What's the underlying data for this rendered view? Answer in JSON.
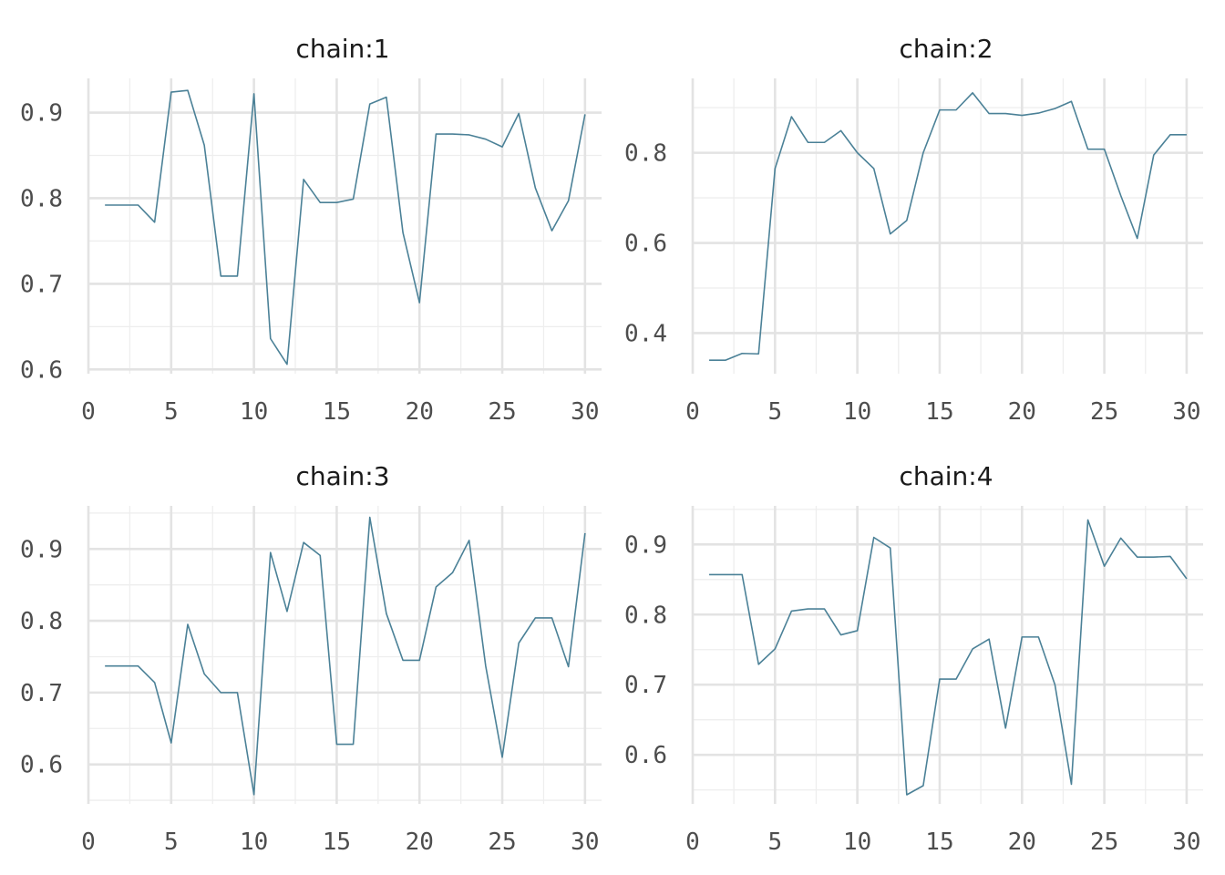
{
  "chart_data": [
    {
      "type": "line",
      "title": "chain:1",
      "x": [
        1,
        2,
        3,
        4,
        5,
        6,
        7,
        8,
        9,
        10,
        11,
        12,
        13,
        14,
        15,
        16,
        17,
        18,
        19,
        20,
        21,
        22,
        23,
        24,
        25,
        26,
        27,
        28,
        29,
        30
      ],
      "values": [
        0.792,
        0.792,
        0.792,
        0.772,
        0.924,
        0.926,
        0.862,
        0.709,
        0.709,
        0.922,
        0.636,
        0.606,
        0.822,
        0.795,
        0.795,
        0.799,
        0.91,
        0.918,
        0.76,
        0.678,
        0.875,
        0.875,
        0.874,
        0.869,
        0.86,
        0.899,
        0.812,
        0.762,
        0.797,
        0.898
      ],
      "xlim": [
        0,
        31
      ],
      "ylim": [
        0.595,
        0.94
      ],
      "xticks": [
        "0",
        "5",
        "10",
        "15",
        "20",
        "25",
        "30"
      ],
      "xtick_values": [
        0,
        5,
        10,
        15,
        20,
        25,
        30
      ],
      "yticks": [
        "0.6",
        "0.7",
        "0.8",
        "0.9"
      ],
      "ytick_values": [
        0.6,
        0.7,
        0.8,
        0.9
      ],
      "grid": true,
      "color": "#4b8197"
    },
    {
      "type": "line",
      "title": "chain:2",
      "x": [
        1,
        2,
        3,
        4,
        5,
        6,
        7,
        8,
        9,
        10,
        11,
        12,
        13,
        14,
        15,
        16,
        17,
        18,
        19,
        20,
        21,
        22,
        23,
        24,
        25,
        26,
        27,
        28,
        29,
        30
      ],
      "values": [
        0.34,
        0.34,
        0.355,
        0.354,
        0.765,
        0.88,
        0.823,
        0.823,
        0.849,
        0.8,
        0.765,
        0.62,
        0.65,
        0.8,
        0.895,
        0.895,
        0.933,
        0.887,
        0.887,
        0.883,
        0.888,
        0.898,
        0.914,
        0.808,
        0.808,
        0.705,
        0.61,
        0.795,
        0.84,
        0.84
      ],
      "xlim": [
        0,
        31
      ],
      "ylim": [
        0.31,
        0.965
      ],
      "xticks": [
        "0",
        "5",
        "10",
        "15",
        "20",
        "25",
        "30"
      ],
      "xtick_values": [
        0,
        5,
        10,
        15,
        20,
        25,
        30
      ],
      "yticks": [
        "0.4",
        "0.6",
        "0.8"
      ],
      "ytick_values": [
        0.4,
        0.6,
        0.8
      ],
      "grid": true,
      "color": "#4b8197"
    },
    {
      "type": "line",
      "title": "chain:3",
      "x": [
        1,
        2,
        3,
        4,
        5,
        6,
        7,
        8,
        9,
        10,
        11,
        12,
        13,
        14,
        15,
        16,
        17,
        18,
        19,
        20,
        21,
        22,
        23,
        24,
        25,
        26,
        27,
        28,
        29,
        30
      ],
      "values": [
        0.737,
        0.737,
        0.737,
        0.714,
        0.63,
        0.795,
        0.726,
        0.7,
        0.7,
        0.558,
        0.895,
        0.813,
        0.909,
        0.891,
        0.628,
        0.628,
        0.944,
        0.81,
        0.745,
        0.745,
        0.847,
        0.867,
        0.912,
        0.737,
        0.61,
        0.769,
        0.804,
        0.804,
        0.736,
        0.922
      ],
      "xlim": [
        0,
        31
      ],
      "ylim": [
        0.545,
        0.96
      ],
      "xticks": [
        "0",
        "5",
        "10",
        "15",
        "20",
        "25",
        "30"
      ],
      "xtick_values": [
        0,
        5,
        10,
        15,
        20,
        25,
        30
      ],
      "yticks": [
        "0.6",
        "0.7",
        "0.8",
        "0.9"
      ],
      "ytick_values": [
        0.6,
        0.7,
        0.8,
        0.9
      ],
      "grid": true,
      "color": "#4b8197"
    },
    {
      "type": "line",
      "title": "chain:4",
      "x": [
        1,
        2,
        3,
        4,
        5,
        6,
        7,
        8,
        9,
        10,
        11,
        12,
        13,
        14,
        15,
        16,
        17,
        18,
        19,
        20,
        21,
        22,
        23,
        24,
        25,
        26,
        27,
        28,
        29,
        30
      ],
      "values": [
        0.857,
        0.857,
        0.857,
        0.729,
        0.751,
        0.805,
        0.808,
        0.808,
        0.771,
        0.777,
        0.91,
        0.895,
        0.543,
        0.556,
        0.708,
        0.708,
        0.751,
        0.765,
        0.638,
        0.768,
        0.768,
        0.7,
        0.558,
        0.935,
        0.869,
        0.909,
        0.882,
        0.882,
        0.883,
        0.851
      ],
      "xlim": [
        0,
        31
      ],
      "ylim": [
        0.53,
        0.955
      ],
      "xticks": [
        "0",
        "5",
        "10",
        "15",
        "20",
        "25",
        "30"
      ],
      "xtick_values": [
        0,
        5,
        10,
        15,
        20,
        25,
        30
      ],
      "yticks": [
        "0.6",
        "0.7",
        "0.8",
        "0.9"
      ],
      "ytick_values": [
        0.6,
        0.7,
        0.8,
        0.9
      ],
      "grid": true,
      "color": "#4b8197"
    }
  ]
}
